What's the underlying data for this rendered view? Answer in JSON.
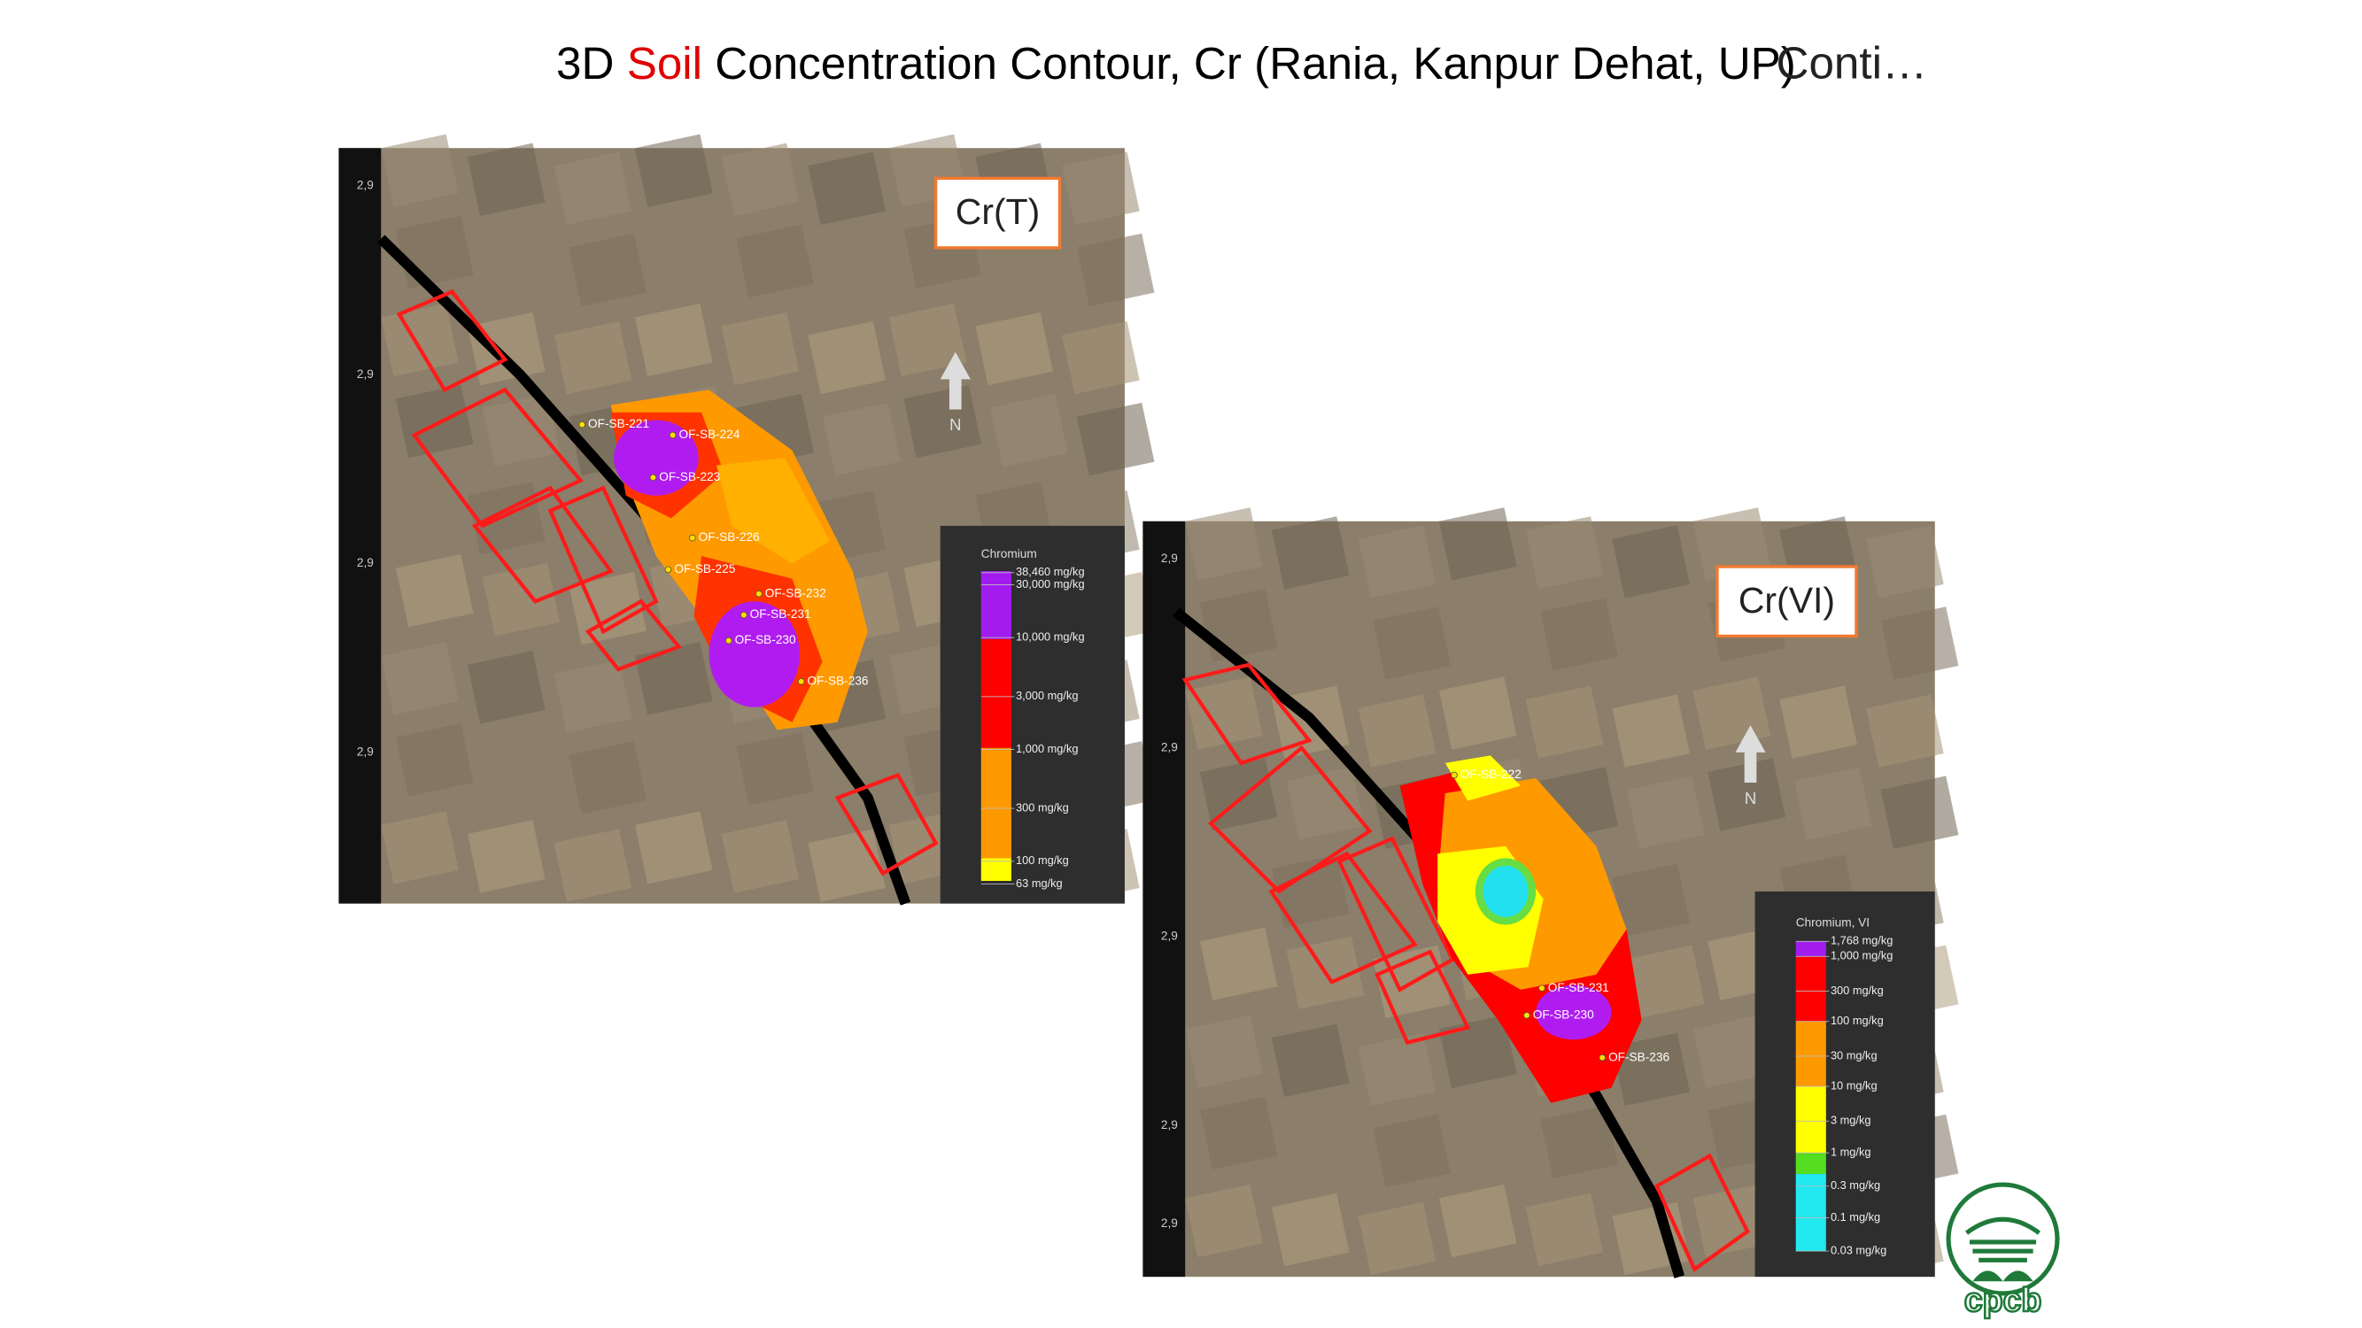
{
  "title": {
    "prefix": "3D ",
    "highlight": "Soil",
    "rest": " Concentration Contour, Cr (Rania, Kanpur Dehat, UP)",
    "continued": "Conti…"
  },
  "maps": [
    {
      "label": "Cr(T)",
      "north": "N",
      "axis_labels": [
        "2,9",
        "2,9",
        "2,9",
        "2,9"
      ],
      "legend": {
        "title": "Chromium",
        "entries": [
          "38,460 mg/kg",
          "30,000 mg/kg",
          "10,000 mg/kg",
          "3,000 mg/kg",
          "1,000 mg/kg",
          "300 mg/kg",
          "100 mg/kg",
          "63 mg/kg"
        ]
      },
      "samples": [
        "OF-SB-221",
        "OF-SB-224",
        "OF-SB-223",
        "OF-SB-226",
        "OF-SB-225",
        "OF-SB-232",
        "OF-SB-231",
        "OF-SB-230",
        "OF-SB-236"
      ]
    },
    {
      "label": "Cr(VI)",
      "north": "N",
      "axis_labels": [
        "2,9",
        "2,9",
        "2,9",
        "2,9",
        "2,9"
      ],
      "legend": {
        "title": "Chromium, VI",
        "entries": [
          "1,768 mg/kg",
          "1,000 mg/kg",
          "300 mg/kg",
          "100 mg/kg",
          "30 mg/kg",
          "10 mg/kg",
          "3 mg/kg",
          "1 mg/kg",
          "0.3 mg/kg",
          "0.1 mg/kg",
          "0.03 mg/kg"
        ]
      },
      "samples": [
        "OF-SB-222",
        "OF-SB-231",
        "OF-SB-230",
        "OF-SB-236"
      ]
    }
  ],
  "logo": "cpcb"
}
